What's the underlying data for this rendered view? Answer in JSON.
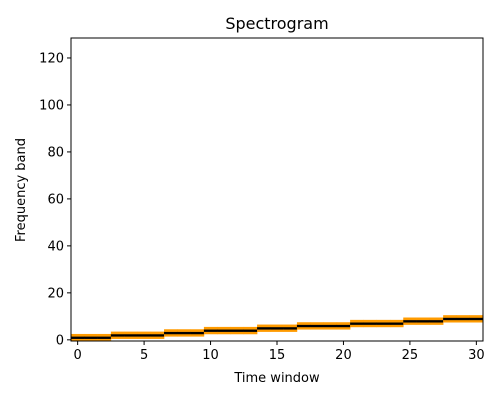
{
  "chart_data": {
    "type": "heatmap",
    "title": "Spectrogram",
    "xlabel": "Time window",
    "ylabel": "Frequency band",
    "xlim": [
      -0.5,
      30.5
    ],
    "ylim": [
      -0.5,
      128.5
    ],
    "xticks": [
      0,
      5,
      10,
      15,
      20,
      25,
      30
    ],
    "yticks": [
      0,
      20,
      40,
      60,
      80,
      100,
      120
    ],
    "colormap": "hot_r",
    "grid": false,
    "background_color": "#ffffff",
    "ridge": {
      "time_windows": [
        0,
        1,
        2,
        3,
        4,
        5,
        6,
        7,
        8,
        9,
        10,
        11,
        12,
        13,
        14,
        15,
        16,
        17,
        18,
        19,
        20,
        21,
        22,
        23,
        24,
        25,
        26,
        27,
        28,
        29,
        30
      ],
      "frequency_bands": [
        1,
        1,
        1,
        2,
        2,
        2,
        2,
        3,
        3,
        3,
        4,
        4,
        4,
        4,
        5,
        5,
        5,
        6,
        6,
        6,
        6,
        7,
        7,
        7,
        7,
        8,
        8,
        8,
        9,
        9,
        9
      ]
    }
  }
}
